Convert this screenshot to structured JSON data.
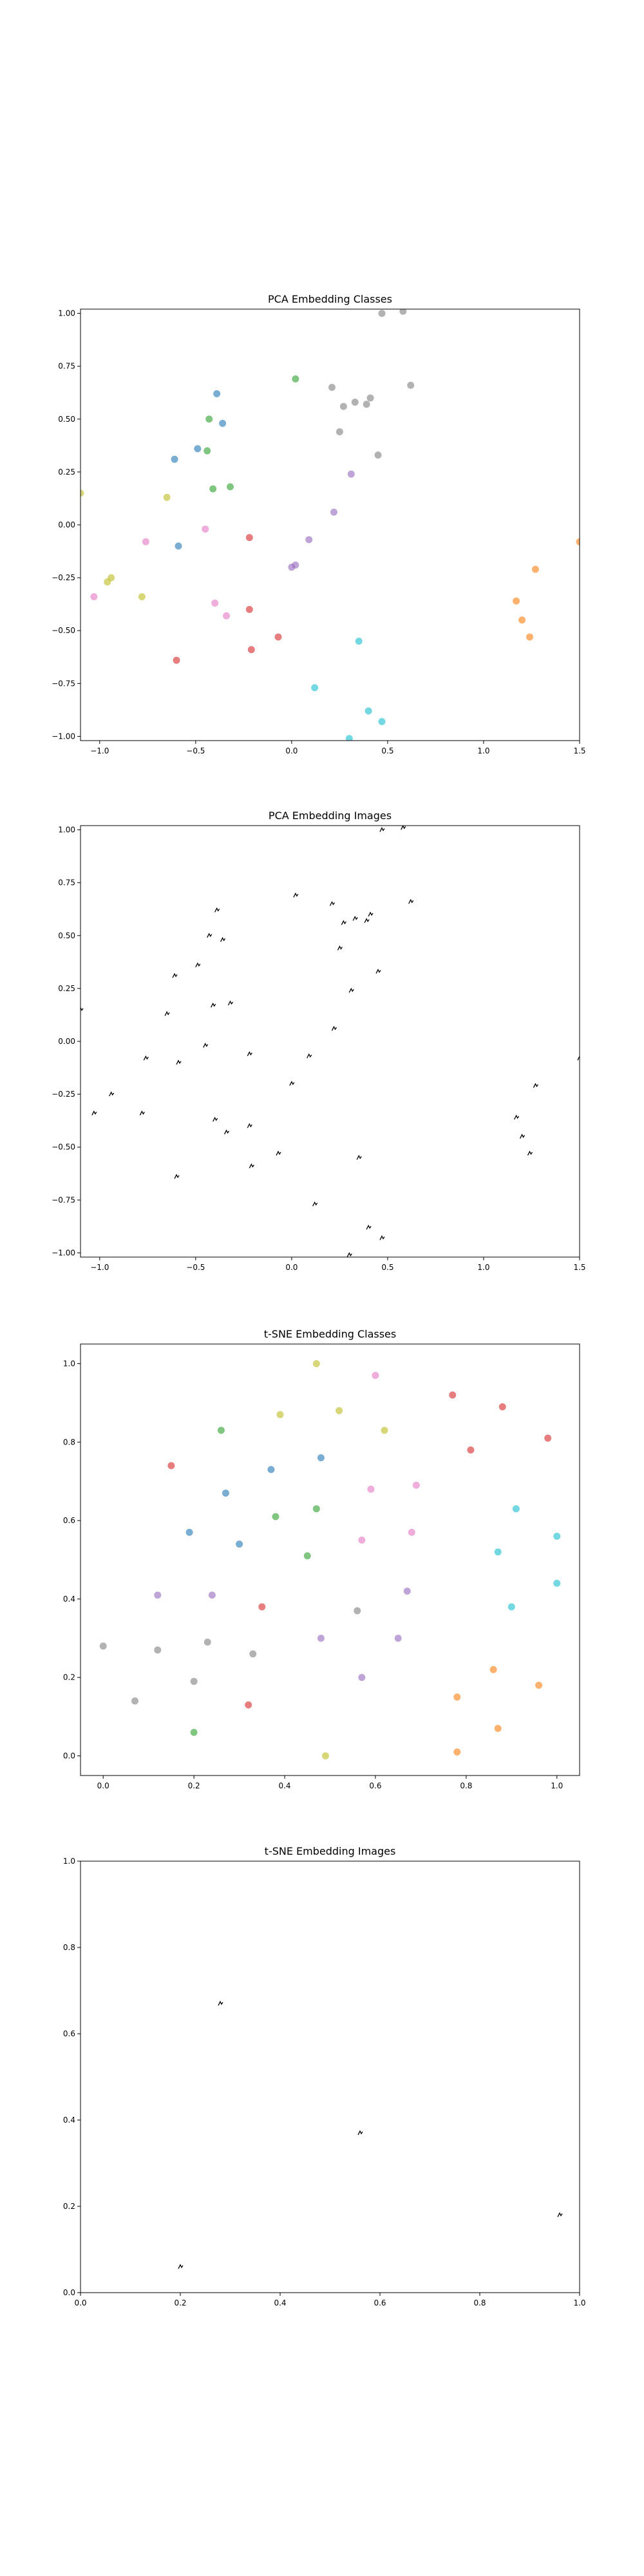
{
  "palette": [
    "#1f77b4",
    "#ff7f0e",
    "#2ca02c",
    "#d62728",
    "#9467bd",
    "#8c564b",
    "#e377c2",
    "#7f7f7f",
    "#bcbd22",
    "#17becf"
  ],
  "chart_data": [
    {
      "type": "scatter",
      "title": "PCA Embedding Classes",
      "xlabel": "",
      "ylabel": "",
      "xlim": [
        -1.1,
        1.5
      ],
      "ylim": [
        -1.02,
        1.02
      ],
      "grid": false,
      "xticks": [
        -1.0,
        -0.5,
        0.0,
        0.5,
        1.0,
        1.5
      ],
      "yticks": [
        -1.0,
        -0.75,
        -0.5,
        -0.25,
        0.0,
        0.25,
        0.5,
        0.75,
        1.0
      ],
      "points": [
        {
          "x": 0.47,
          "y": 1.0,
          "c": 7
        },
        {
          "x": 0.58,
          "y": 1.01,
          "c": 7
        },
        {
          "x": 0.02,
          "y": 0.69,
          "c": 2
        },
        {
          "x": 0.21,
          "y": 0.65,
          "c": 7
        },
        {
          "x": 0.62,
          "y": 0.66,
          "c": 7
        },
        {
          "x": -0.39,
          "y": 0.62,
          "c": 0
        },
        {
          "x": 0.41,
          "y": 0.6,
          "c": 7
        },
        {
          "x": 0.33,
          "y": 0.58,
          "c": 7
        },
        {
          "x": 0.39,
          "y": 0.57,
          "c": 7
        },
        {
          "x": 0.27,
          "y": 0.56,
          "c": 7
        },
        {
          "x": -0.43,
          "y": 0.5,
          "c": 2
        },
        {
          "x": -0.36,
          "y": 0.48,
          "c": 0
        },
        {
          "x": 0.25,
          "y": 0.44,
          "c": 7
        },
        {
          "x": -0.49,
          "y": 0.36,
          "c": 0
        },
        {
          "x": -0.44,
          "y": 0.35,
          "c": 2
        },
        {
          "x": 0.45,
          "y": 0.33,
          "c": 7
        },
        {
          "x": -0.61,
          "y": 0.31,
          "c": 0
        },
        {
          "x": 0.31,
          "y": 0.24,
          "c": 4
        },
        {
          "x": -0.32,
          "y": 0.18,
          "c": 2
        },
        {
          "x": -0.41,
          "y": 0.17,
          "c": 2
        },
        {
          "x": -1.1,
          "y": 0.15,
          "c": 8
        },
        {
          "x": -0.65,
          "y": 0.13,
          "c": 8
        },
        {
          "x": 0.22,
          "y": 0.06,
          "c": 4
        },
        {
          "x": -0.45,
          "y": -0.02,
          "c": 6
        },
        {
          "x": -0.22,
          "y": -0.06,
          "c": 3
        },
        {
          "x": 0.09,
          "y": -0.07,
          "c": 4
        },
        {
          "x": -0.76,
          "y": -0.08,
          "c": 6
        },
        {
          "x": 1.5,
          "y": -0.08,
          "c": 1
        },
        {
          "x": -0.59,
          "y": -0.1,
          "c": 0
        },
        {
          "x": 0.02,
          "y": -0.19,
          "c": 4
        },
        {
          "x": 0.0,
          "y": -0.2,
          "c": 4
        },
        {
          "x": 1.27,
          "y": -0.21,
          "c": 1
        },
        {
          "x": -0.94,
          "y": -0.25,
          "c": 8
        },
        {
          "x": -0.96,
          "y": -0.27,
          "c": 8
        },
        {
          "x": -1.03,
          "y": -0.34,
          "c": 6
        },
        {
          "x": -0.78,
          "y": -0.34,
          "c": 8
        },
        {
          "x": 1.17,
          "y": -0.36,
          "c": 1
        },
        {
          "x": -0.4,
          "y": -0.37,
          "c": 6
        },
        {
          "x": -0.22,
          "y": -0.4,
          "c": 3
        },
        {
          "x": -0.34,
          "y": -0.43,
          "c": 6
        },
        {
          "x": 1.2,
          "y": -0.45,
          "c": 1
        },
        {
          "x": -0.07,
          "y": -0.53,
          "c": 3
        },
        {
          "x": 1.24,
          "y": -0.53,
          "c": 1
        },
        {
          "x": 0.35,
          "y": -0.55,
          "c": 9
        },
        {
          "x": -0.21,
          "y": -0.59,
          "c": 3
        },
        {
          "x": -0.6,
          "y": -0.64,
          "c": 3
        },
        {
          "x": 0.12,
          "y": -0.77,
          "c": 9
        },
        {
          "x": 0.4,
          "y": -0.88,
          "c": 9
        },
        {
          "x": 0.47,
          "y": -0.93,
          "c": 9
        },
        {
          "x": 0.3,
          "y": -1.01,
          "c": 9
        }
      ]
    },
    {
      "type": "scatter",
      "title": "PCA Embedding Images",
      "xlabel": "",
      "ylabel": "",
      "xlim": [
        -1.1,
        1.5
      ],
      "ylim": [
        -1.02,
        1.02
      ],
      "grid": false,
      "xticks": [
        -1.0,
        -0.5,
        0.0,
        0.5,
        1.0,
        1.5
      ],
      "yticks": [
        -1.0,
        -0.75,
        -0.5,
        -0.25,
        0.0,
        0.25,
        0.5,
        0.75,
        1.0
      ],
      "points": [
        {
          "x": 0.47,
          "y": 1.0
        },
        {
          "x": 0.58,
          "y": 1.01
        },
        {
          "x": 0.02,
          "y": 0.69
        },
        {
          "x": 0.21,
          "y": 0.65
        },
        {
          "x": 0.62,
          "y": 0.66
        },
        {
          "x": -0.39,
          "y": 0.62
        },
        {
          "x": 0.41,
          "y": 0.6
        },
        {
          "x": 0.33,
          "y": 0.58
        },
        {
          "x": 0.39,
          "y": 0.57
        },
        {
          "x": 0.27,
          "y": 0.56
        },
        {
          "x": -0.43,
          "y": 0.5
        },
        {
          "x": -0.36,
          "y": 0.48
        },
        {
          "x": 0.25,
          "y": 0.44
        },
        {
          "x": -0.49,
          "y": 0.36
        },
        {
          "x": 0.45,
          "y": 0.33
        },
        {
          "x": -0.61,
          "y": 0.31
        },
        {
          "x": 0.31,
          "y": 0.24
        },
        {
          "x": -0.32,
          "y": 0.18
        },
        {
          "x": -0.41,
          "y": 0.17
        },
        {
          "x": -1.1,
          "y": 0.15
        },
        {
          "x": -0.65,
          "y": 0.13
        },
        {
          "x": 0.22,
          "y": 0.06
        },
        {
          "x": -0.45,
          "y": -0.02
        },
        {
          "x": -0.22,
          "y": -0.06
        },
        {
          "x": 0.09,
          "y": -0.07
        },
        {
          "x": -0.76,
          "y": -0.08
        },
        {
          "x": 1.5,
          "y": -0.08
        },
        {
          "x": -0.59,
          "y": -0.1
        },
        {
          "x": 0.0,
          "y": -0.2
        },
        {
          "x": 1.27,
          "y": -0.21
        },
        {
          "x": -0.94,
          "y": -0.25
        },
        {
          "x": -1.03,
          "y": -0.34
        },
        {
          "x": -0.78,
          "y": -0.34
        },
        {
          "x": 1.17,
          "y": -0.36
        },
        {
          "x": -0.4,
          "y": -0.37
        },
        {
          "x": -0.22,
          "y": -0.4
        },
        {
          "x": -0.34,
          "y": -0.43
        },
        {
          "x": 1.2,
          "y": -0.45
        },
        {
          "x": -0.07,
          "y": -0.53
        },
        {
          "x": 1.24,
          "y": -0.53
        },
        {
          "x": 0.35,
          "y": -0.55
        },
        {
          "x": -0.21,
          "y": -0.59
        },
        {
          "x": -0.6,
          "y": -0.64
        },
        {
          "x": 0.12,
          "y": -0.77
        },
        {
          "x": 0.4,
          "y": -0.88
        },
        {
          "x": 0.47,
          "y": -0.93
        },
        {
          "x": 0.3,
          "y": -1.01
        }
      ]
    },
    {
      "type": "scatter",
      "title": "t-SNE Embedding Classes",
      "xlabel": "",
      "ylabel": "",
      "xlim": [
        -0.05,
        1.05
      ],
      "ylim": [
        -0.05,
        1.05
      ],
      "grid": false,
      "xticks": [
        0.0,
        0.2,
        0.4,
        0.6,
        0.8,
        1.0
      ],
      "yticks": [
        0.0,
        0.2,
        0.4,
        0.6,
        0.8,
        1.0
      ],
      "points": [
        {
          "x": 0.47,
          "y": 1.0,
          "c": 8
        },
        {
          "x": 0.6,
          "y": 0.97,
          "c": 6
        },
        {
          "x": 0.77,
          "y": 0.92,
          "c": 3
        },
        {
          "x": 0.88,
          "y": 0.89,
          "c": 3
        },
        {
          "x": 0.39,
          "y": 0.87,
          "c": 8
        },
        {
          "x": 0.52,
          "y": 0.88,
          "c": 8
        },
        {
          "x": 0.26,
          "y": 0.83,
          "c": 2
        },
        {
          "x": 0.62,
          "y": 0.83,
          "c": 8
        },
        {
          "x": 0.98,
          "y": 0.81,
          "c": 3
        },
        {
          "x": 0.81,
          "y": 0.78,
          "c": 3
        },
        {
          "x": 0.48,
          "y": 0.76,
          "c": 0
        },
        {
          "x": 0.15,
          "y": 0.74,
          "c": 3
        },
        {
          "x": 0.37,
          "y": 0.73,
          "c": 0
        },
        {
          "x": 0.69,
          "y": 0.69,
          "c": 6
        },
        {
          "x": 0.59,
          "y": 0.68,
          "c": 6
        },
        {
          "x": 0.27,
          "y": 0.67,
          "c": 0
        },
        {
          "x": 0.91,
          "y": 0.63,
          "c": 9
        },
        {
          "x": 0.47,
          "y": 0.63,
          "c": 2
        },
        {
          "x": 0.38,
          "y": 0.61,
          "c": 2
        },
        {
          "x": 0.19,
          "y": 0.57,
          "c": 0
        },
        {
          "x": 0.68,
          "y": 0.57,
          "c": 6
        },
        {
          "x": 1.0,
          "y": 0.56,
          "c": 9
        },
        {
          "x": 0.57,
          "y": 0.55,
          "c": 6
        },
        {
          "x": 0.3,
          "y": 0.54,
          "c": 0
        },
        {
          "x": 0.87,
          "y": 0.52,
          "c": 9
        },
        {
          "x": 0.45,
          "y": 0.51,
          "c": 2
        },
        {
          "x": 1.0,
          "y": 0.44,
          "c": 9
        },
        {
          "x": 0.67,
          "y": 0.42,
          "c": 4
        },
        {
          "x": 0.24,
          "y": 0.41,
          "c": 4
        },
        {
          "x": 0.12,
          "y": 0.41,
          "c": 4
        },
        {
          "x": 0.9,
          "y": 0.38,
          "c": 9
        },
        {
          "x": 0.35,
          "y": 0.38,
          "c": 3
        },
        {
          "x": 0.56,
          "y": 0.37,
          "c": 7
        },
        {
          "x": 0.48,
          "y": 0.3,
          "c": 4
        },
        {
          "x": 0.65,
          "y": 0.3,
          "c": 4
        },
        {
          "x": 0.23,
          "y": 0.29,
          "c": 7
        },
        {
          "x": 0.0,
          "y": 0.28,
          "c": 7
        },
        {
          "x": 0.12,
          "y": 0.27,
          "c": 7
        },
        {
          "x": 0.33,
          "y": 0.26,
          "c": 7
        },
        {
          "x": 0.86,
          "y": 0.22,
          "c": 1
        },
        {
          "x": 0.57,
          "y": 0.2,
          "c": 4
        },
        {
          "x": 0.2,
          "y": 0.19,
          "c": 7
        },
        {
          "x": 0.96,
          "y": 0.18,
          "c": 1
        },
        {
          "x": 0.78,
          "y": 0.15,
          "c": 1
        },
        {
          "x": 0.07,
          "y": 0.14,
          "c": 7
        },
        {
          "x": 0.32,
          "y": 0.13,
          "c": 3
        },
        {
          "x": 0.87,
          "y": 0.07,
          "c": 1
        },
        {
          "x": 0.2,
          "y": 0.06,
          "c": 2
        },
        {
          "x": 0.78,
          "y": 0.01,
          "c": 1
        },
        {
          "x": 0.49,
          "y": 0.0,
          "c": 8
        }
      ]
    },
    {
      "type": "scatter",
      "title": "t-SNE Embedding Images",
      "xlabel": "",
      "ylabel": "",
      "xlim": [
        0.0,
        1.0
      ],
      "ylim": [
        0.0,
        1.0
      ],
      "grid": false,
      "xticks": [
        0.0,
        0.2,
        0.4,
        0.6,
        0.8,
        1.0
      ],
      "yticks": [
        0.0,
        0.2,
        0.4,
        0.6,
        0.8,
        1.0
      ],
      "points": [
        {
          "x": 0.28,
          "y": 0.67
        },
        {
          "x": 0.56,
          "y": 0.37
        },
        {
          "x": 0.96,
          "y": 0.18
        },
        {
          "x": 0.2,
          "y": 0.06
        }
      ]
    }
  ]
}
